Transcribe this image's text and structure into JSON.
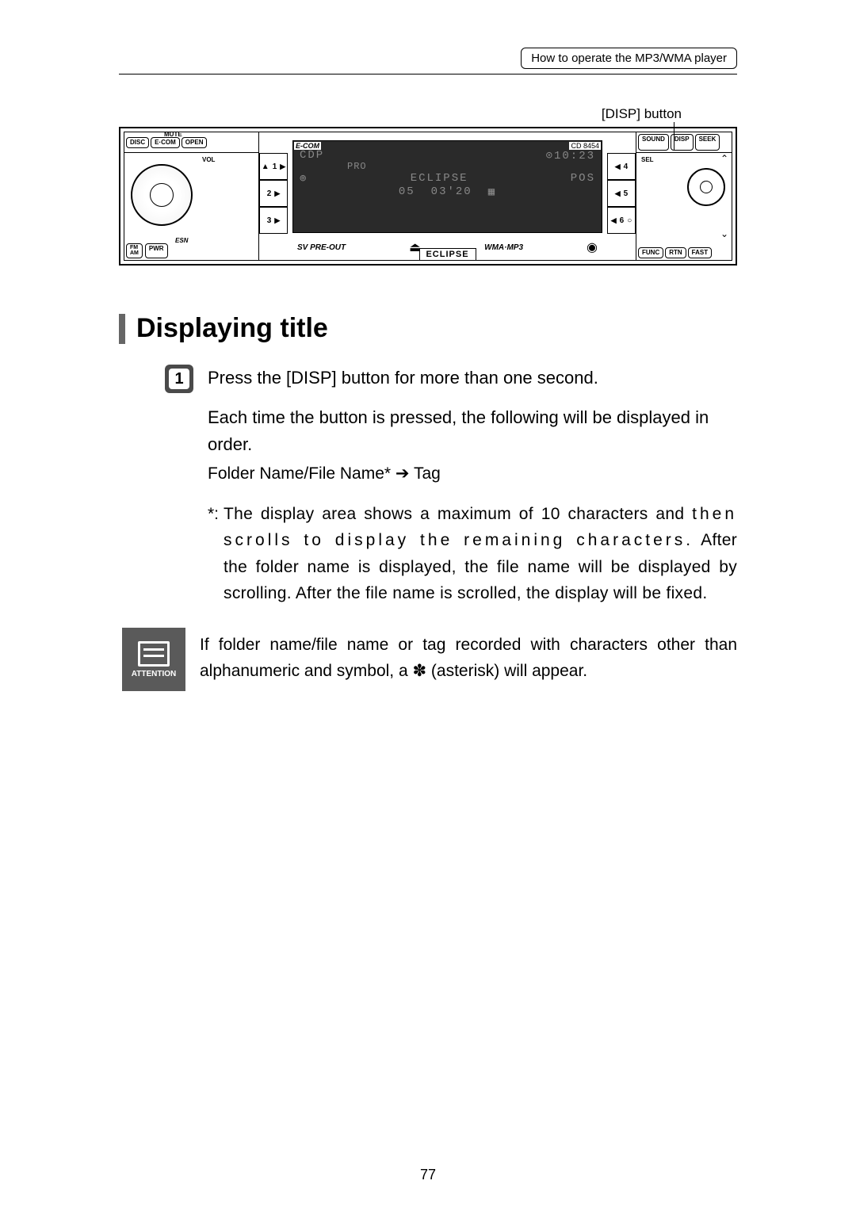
{
  "header": {
    "breadcrumb": "How to operate the MP3/WMA player"
  },
  "callout": {
    "disp_label": "[DISP] button"
  },
  "stereo": {
    "top_left": {
      "disc": "DISC",
      "ecom": "E·COM",
      "open": "OPEN",
      "mute": "MUTE"
    },
    "vol": "VOL",
    "esn": "ESN",
    "bottom_left": {
      "fm_am": "FM\nAM",
      "pwr": "PWR"
    },
    "ecom_brand": "E-COM",
    "cd_model": "CD 8454",
    "presets_left": [
      "1",
      "2",
      "3"
    ],
    "presets_right": [
      "4",
      "5",
      "6"
    ],
    "display": {
      "l1a": "CDP",
      "l1b": "⊙10:23",
      "l2": "PRO",
      "l3a": "ECLIPSE",
      "l3b": "POS",
      "l4a": "05",
      "l4b": "03'20"
    },
    "sv": "SV PRE-OUT",
    "wma": "WMA·MP3",
    "brand": "ECLIPSE",
    "right_top": {
      "sound": "SOUND",
      "disp": "DISP",
      "seek": "SEEK"
    },
    "sel": "SEL",
    "right_bottom": {
      "func": "FUNC",
      "rtn": "RTN",
      "fast": "FAST"
    }
  },
  "section": {
    "title": "Displaying title"
  },
  "step1": {
    "num": "1",
    "title": "Press the [DISP] button for more than one second.",
    "p1": "Each time the button is pressed, the following will be displayed in order.",
    "p2": "Folder Name/File Name* ➔ Tag",
    "note_marker": "*:",
    "note_a": "The display area shows a maximum of 10 characters and ",
    "note_spaced": "then scrolls to display the remaining characters.",
    "note_b": " After the folder name is displayed, the file name will be displayed by scrolling. After the file name is scrolled, the display will be fixed."
  },
  "attention": {
    "label": "ATTENTION",
    "text": "If folder name/file name or tag recorded with characters other than alphanumeric and symbol, a ✽ (asterisk) will appear."
  },
  "page_number": "77"
}
